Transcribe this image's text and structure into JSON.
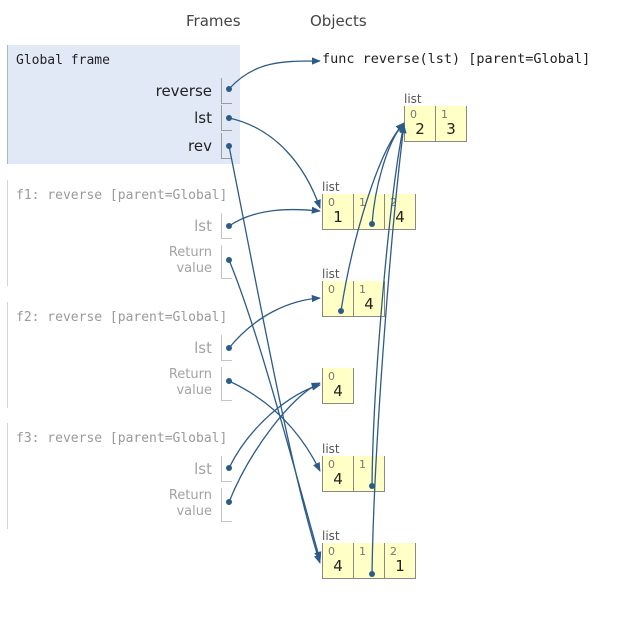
{
  "headers": {
    "frames": "Frames",
    "objects": "Objects"
  },
  "frames": [
    {
      "title": "Global frame",
      "vars": [
        {
          "name": "reverse"
        },
        {
          "name": "lst"
        },
        {
          "name": "rev"
        }
      ]
    },
    {
      "title": "f1: reverse [parent=Global]",
      "vars": [
        {
          "name": "lst"
        },
        {
          "name": "Return\nvalue"
        }
      ]
    },
    {
      "title": "f2: reverse [parent=Global]",
      "vars": [
        {
          "name": "lst"
        },
        {
          "name": "Return\nvalue"
        }
      ]
    },
    {
      "title": "f3: reverse [parent=Global]",
      "vars": [
        {
          "name": "lst"
        },
        {
          "name": "Return\nvalue"
        }
      ]
    }
  ],
  "func_object": "func reverse(lst) [parent=Global]",
  "objects": [
    {
      "type": "list",
      "cells": [
        {
          "index": "0",
          "value": "2"
        },
        {
          "index": "1",
          "value": "3"
        }
      ]
    },
    {
      "type": "list",
      "cells": [
        {
          "index": "0",
          "value": "1"
        },
        {
          "index": "1",
          "value": ""
        },
        {
          "index": "2",
          "value": "4"
        }
      ]
    },
    {
      "type": "list",
      "cells": [
        {
          "index": "0",
          "value": ""
        },
        {
          "index": "1",
          "value": "4"
        }
      ]
    },
    {
      "type": "",
      "cells": [
        {
          "index": "0",
          "value": "4"
        }
      ]
    },
    {
      "type": "list",
      "cells": [
        {
          "index": "0",
          "value": "4"
        },
        {
          "index": "1",
          "value": ""
        }
      ]
    },
    {
      "type": "list",
      "cells": [
        {
          "index": "0",
          "value": "4"
        },
        {
          "index": "1",
          "value": ""
        },
        {
          "index": "2",
          "value": "1"
        }
      ]
    }
  ],
  "colors": {
    "arrow": "#2d5b87",
    "global_frame_bg": "#e2e9f6",
    "list_cell_bg": "#ffffc6"
  }
}
